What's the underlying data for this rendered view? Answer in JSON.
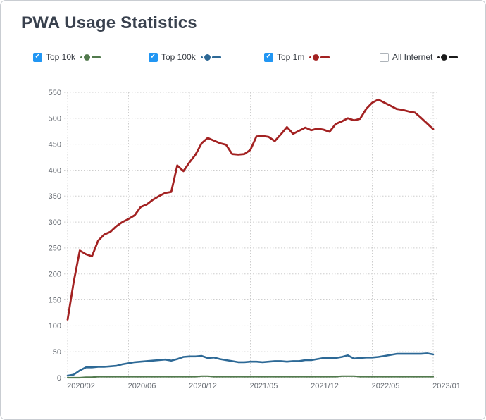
{
  "title": "PWA Usage Statistics",
  "colors": {
    "checkbox_checked": "#2196f3",
    "grid": "#cdcdcd",
    "tick_text": "#666b72",
    "title_text": "#39414e"
  },
  "chart_data": {
    "type": "line",
    "title": "PWA Usage Statistics",
    "xlabel": "",
    "ylabel": "",
    "ylim": [
      0,
      550
    ],
    "y_ticks": [
      0,
      50,
      100,
      150,
      200,
      250,
      300,
      350,
      400,
      450,
      500,
      550
    ],
    "x_tick_labels": [
      "2020/02",
      "2020/06",
      "2020/12",
      "2021/05",
      "2021/12",
      "2022/05",
      "2023/01"
    ],
    "grid": "dotted",
    "legend_position": "top",
    "series": [
      {
        "name": "Top 10k",
        "color": "#527a4d",
        "checked": true,
        "line_width": 2.2,
        "values": [
          0,
          0,
          0,
          1,
          1,
          2,
          2,
          2,
          2,
          2,
          2,
          2,
          2,
          2,
          2,
          2,
          2,
          2,
          2,
          2,
          2,
          2,
          3,
          3,
          2,
          2,
          2,
          2,
          2,
          2,
          2,
          2,
          2,
          2,
          2,
          2,
          2,
          2,
          2,
          2,
          2,
          2,
          2,
          2,
          2,
          3,
          3,
          3,
          2,
          2,
          2,
          2,
          2,
          2,
          2,
          2,
          2,
          2,
          2,
          2,
          2
        ]
      },
      {
        "name": "Top 100k",
        "color": "#2d6996",
        "checked": true,
        "line_width": 2.6,
        "values": [
          4,
          6,
          14,
          20,
          20,
          21,
          21,
          22,
          23,
          26,
          28,
          30,
          31,
          32,
          33,
          34,
          35,
          33,
          36,
          40,
          41,
          41,
          42,
          38,
          39,
          36,
          34,
          32,
          30,
          30,
          31,
          31,
          30,
          31,
          32,
          32,
          31,
          32,
          32,
          34,
          34,
          36,
          38,
          38,
          38,
          40,
          43,
          37,
          38,
          39,
          39,
          40,
          42,
          44,
          46,
          46,
          46,
          46,
          46,
          47,
          45
        ]
      },
      {
        "name": "Top 1m",
        "color": "#a32222",
        "checked": true,
        "line_width": 2.8,
        "values": [
          112,
          185,
          245,
          238,
          234,
          264,
          276,
          281,
          292,
          300,
          306,
          313,
          329,
          334,
          343,
          350,
          356,
          358,
          409,
          398,
          415,
          430,
          452,
          462,
          457,
          452,
          449,
          431,
          430,
          431,
          439,
          465,
          466,
          464,
          456,
          469,
          483,
          470,
          476,
          482,
          477,
          480,
          478,
          474,
          489,
          494,
          500,
          496,
          499,
          518,
          530,
          536,
          530,
          524,
          518,
          516,
          513,
          511,
          501,
          490,
          479
        ]
      },
      {
        "name": "All Internet",
        "color": "#1b1b1b",
        "checked": false,
        "line_width": 2.6,
        "values": []
      }
    ]
  }
}
